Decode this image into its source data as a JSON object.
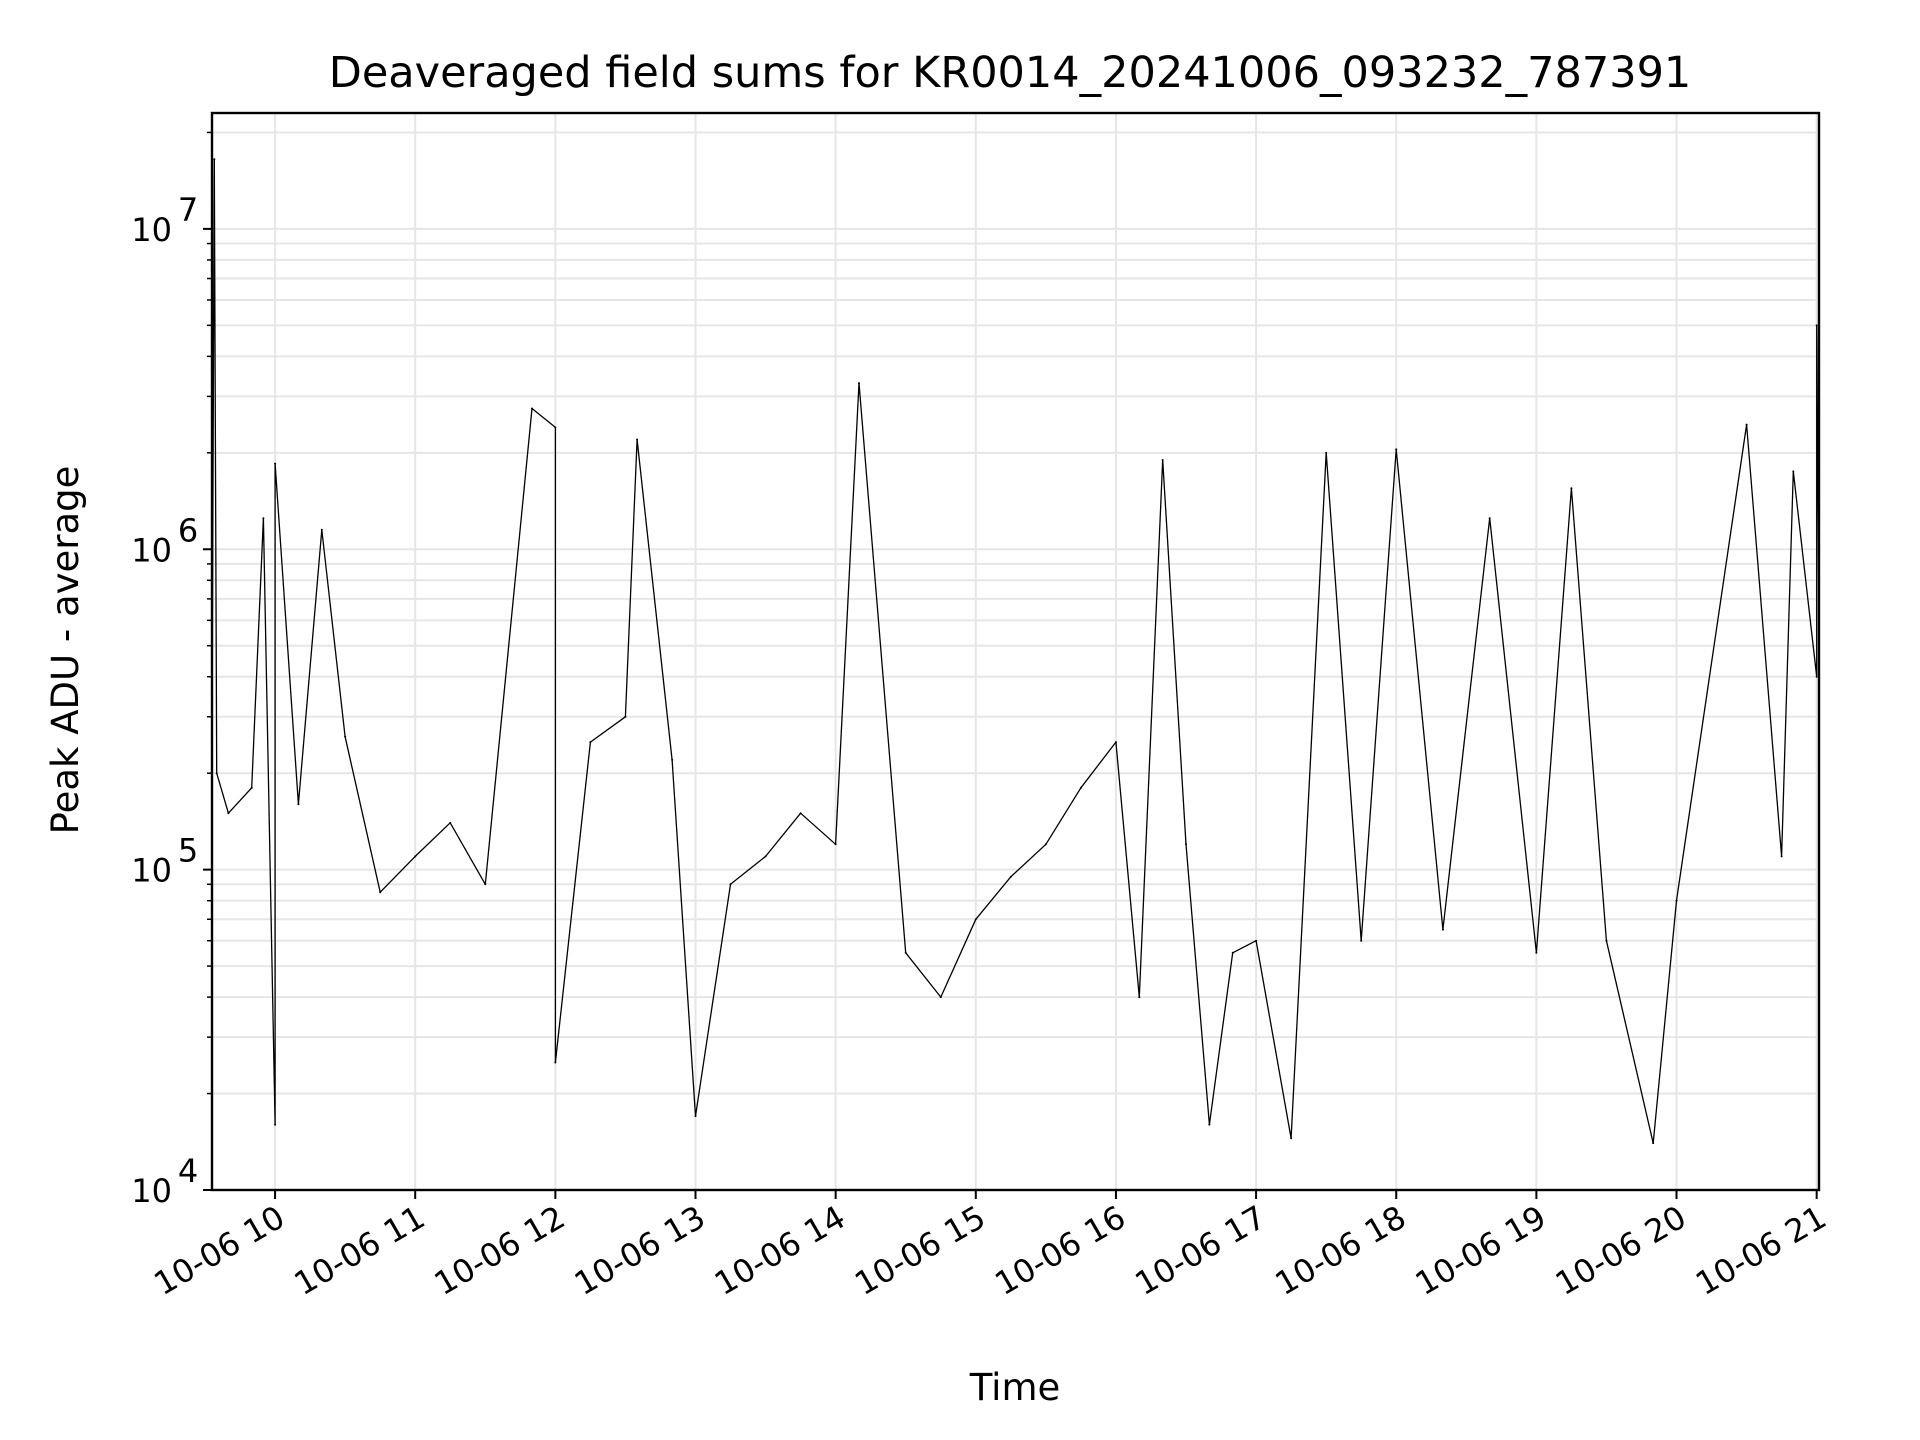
{
  "chart_data": {
    "type": "line",
    "title": "Deaveraged field sums for KR0014_20241006_093232_787391",
    "xlabel": "Time",
    "ylabel": "Peak ADU - average",
    "yscale": "log",
    "ylim": [
      10000,
      23000000
    ],
    "xlim": [
      "2024-10-06 09:33",
      "2024-10-06 21:01"
    ],
    "grid": true,
    "line_color": "#000000",
    "x_tick_labels": [
      "10-06 10",
      "10-06 11",
      "10-06 12",
      "10-06 13",
      "10-06 14",
      "10-06 15",
      "10-06 16",
      "10-06 17",
      "10-06 18",
      "10-06 19",
      "10-06 20",
      "10-06 21"
    ],
    "y_ticks": [
      {
        "value": 10000,
        "base": "10",
        "exp": "4"
      },
      {
        "value": 100000,
        "base": "10",
        "exp": "5"
      },
      {
        "value": 1000000,
        "base": "10",
        "exp": "6"
      },
      {
        "value": 10000000,
        "base": "10",
        "exp": "7"
      }
    ],
    "series": [
      {
        "points": [
          [
            "2024-10-06 09:33",
            260000
          ],
          [
            "2024-10-06 09:34",
            16500000
          ],
          [
            "2024-10-06 09:35",
            200000
          ],
          [
            "2024-10-06 09:40",
            150000
          ],
          [
            "2024-10-06 09:50",
            180000
          ],
          [
            "2024-10-06 09:55",
            1250000
          ],
          [
            "2024-10-06 10:00",
            16000
          ],
          [
            "2024-10-06 10:00",
            1850000
          ],
          [
            "2024-10-06 10:10",
            160000
          ],
          [
            "2024-10-06 10:20",
            1150000
          ],
          [
            "2024-10-06 10:30",
            260000
          ],
          [
            "2024-10-06 10:45",
            85000
          ],
          [
            "2024-10-06 11:00",
            110000
          ],
          [
            "2024-10-06 11:15",
            140000
          ],
          [
            "2024-10-06 11:30",
            90000
          ],
          [
            "2024-10-06 11:50",
            2750000
          ],
          [
            "2024-10-06 12:00",
            2400000
          ],
          [
            "2024-10-06 12:00",
            25000
          ],
          [
            "2024-10-06 12:15",
            250000
          ],
          [
            "2024-10-06 12:30",
            300000
          ],
          [
            "2024-10-06 12:35",
            2200000
          ],
          [
            "2024-10-06 12:50",
            220000
          ],
          [
            "2024-10-06 13:00",
            17000
          ],
          [
            "2024-10-06 13:15",
            90000
          ],
          [
            "2024-10-06 13:30",
            110000
          ],
          [
            "2024-10-06 13:45",
            150000
          ],
          [
            "2024-10-06 14:00",
            120000
          ],
          [
            "2024-10-06 14:10",
            3300000
          ],
          [
            "2024-10-06 14:30",
            55000
          ],
          [
            "2024-10-06 14:45",
            40000
          ],
          [
            "2024-10-06 15:00",
            70000
          ],
          [
            "2024-10-06 15:15",
            95000
          ],
          [
            "2024-10-06 15:30",
            120000
          ],
          [
            "2024-10-06 15:45",
            180000
          ],
          [
            "2024-10-06 16:00",
            250000
          ],
          [
            "2024-10-06 16:10",
            40000
          ],
          [
            "2024-10-06 16:20",
            1900000
          ],
          [
            "2024-10-06 16:30",
            120000
          ],
          [
            "2024-10-06 16:40",
            16000
          ],
          [
            "2024-10-06 16:50",
            55000
          ],
          [
            "2024-10-06 17:00",
            60000
          ],
          [
            "2024-10-06 17:15",
            14500
          ],
          [
            "2024-10-06 17:30",
            2000000
          ],
          [
            "2024-10-06 17:45",
            60000
          ],
          [
            "2024-10-06 18:00",
            2050000
          ],
          [
            "2024-10-06 18:20",
            65000
          ],
          [
            "2024-10-06 18:40",
            1250000
          ],
          [
            "2024-10-06 19:00",
            55000
          ],
          [
            "2024-10-06 19:15",
            1550000
          ],
          [
            "2024-10-06 19:30",
            60000
          ],
          [
            "2024-10-06 19:50",
            14000
          ],
          [
            "2024-10-06 20:00",
            80000
          ],
          [
            "2024-10-06 20:30",
            2450000
          ],
          [
            "2024-10-06 20:45",
            110000
          ],
          [
            "2024-10-06 20:50",
            1750000
          ],
          [
            "2024-10-06 21:00",
            400000
          ],
          [
            "2024-10-06 21:00",
            5000000
          ],
          [
            "2024-10-06 21:01",
            550000
          ]
        ]
      }
    ]
  }
}
